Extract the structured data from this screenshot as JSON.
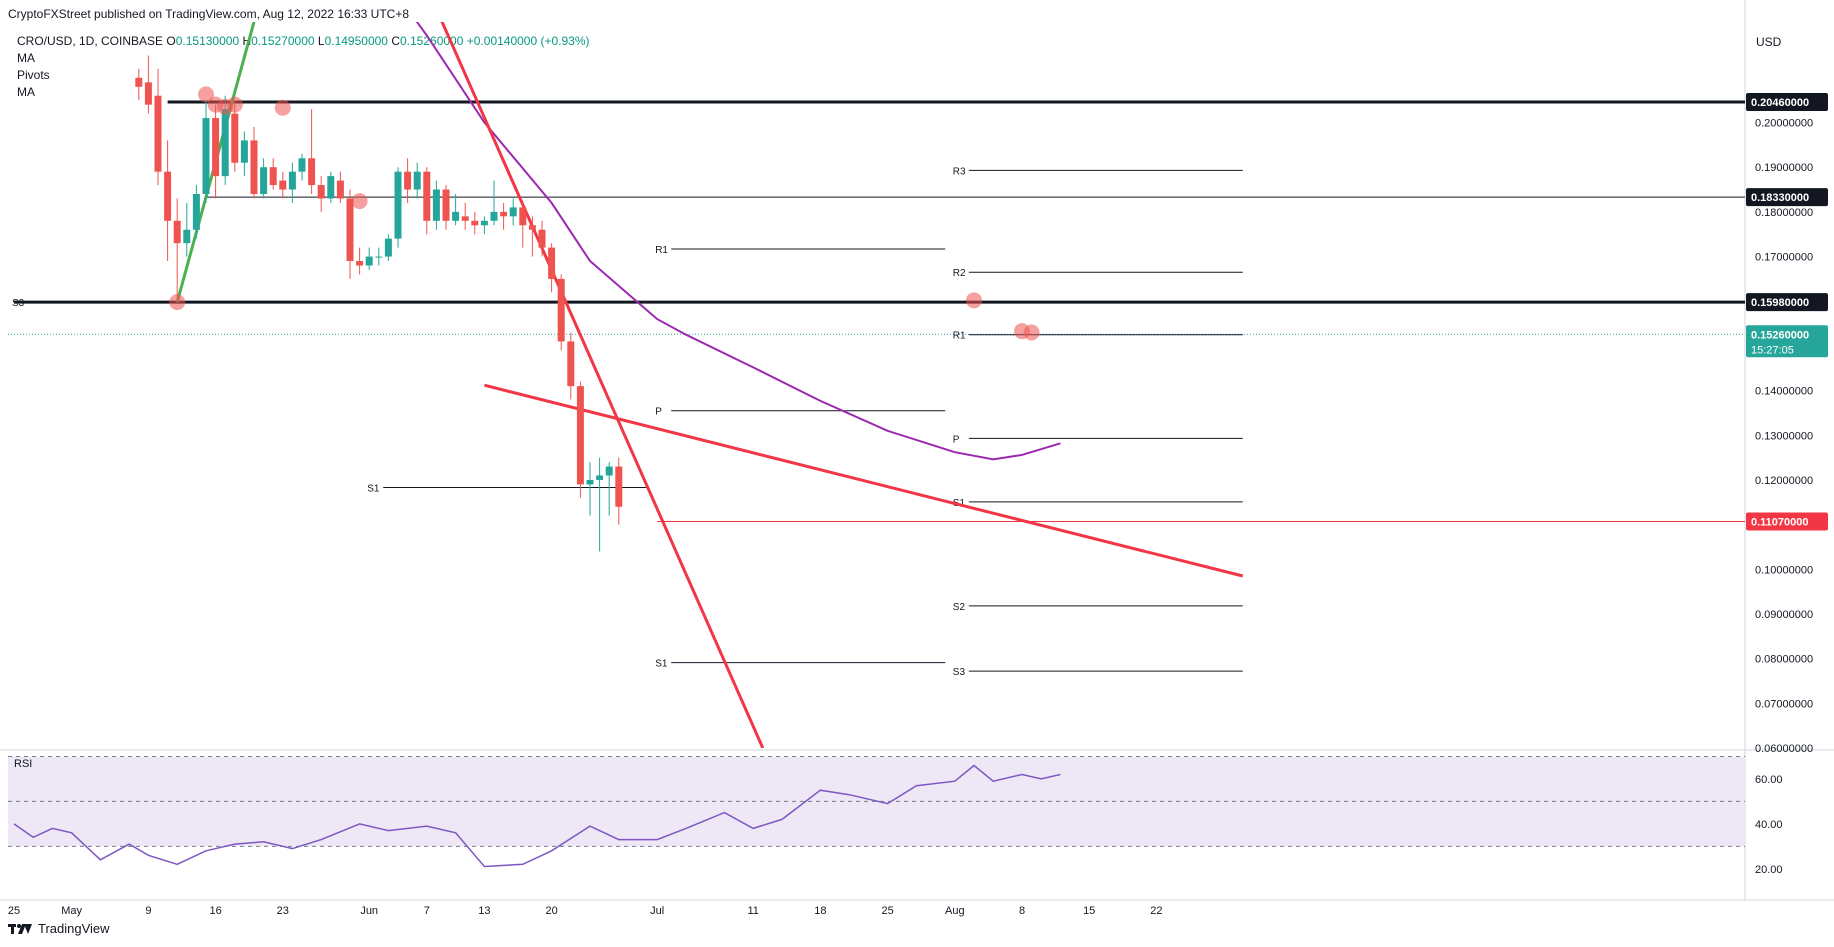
{
  "header": {
    "published": "CryptoFXStreet published on TradingView.com, Aug 12, 2022 16:33 UTC+8",
    "symbol": "CRO/USD, 1D, COINBASE",
    "ohlc": {
      "open_label": "O",
      "open": "0.15130000",
      "high_label": "H",
      "high": "0.15270000",
      "low_label": "L",
      "low": "0.14950000",
      "close_label": "C",
      "close": "0.15260000",
      "change": "+0.00140000 (+0.93%)"
    },
    "indicators": [
      "MA",
      "Pivots",
      "MA"
    ],
    "currency": "USD"
  },
  "footer": {
    "brand": "TradingView"
  },
  "colors": {
    "up": "#26a69a",
    "down": "#ef5350",
    "ma": "#9c27b0",
    "trend_red": "#f23645",
    "trend_green": "#4caf50",
    "rsi": "#7e57c2",
    "rsi_band": "#ede7f6"
  },
  "chart_data": [
    {
      "type": "candlestick",
      "title": "CRO/USD, 1D, COINBASE",
      "ylim": [
        0.06,
        0.2225
      ],
      "y_ticks": [
        "0.20000000",
        "0.19000000",
        "0.18000000",
        "0.17000000",
        "0.14000000",
        "0.13000000",
        "0.12000000",
        "0.10000000",
        "0.09000000",
        "0.08000000",
        "0.07000000",
        "0.06000000"
      ],
      "x_ticks": [
        "25",
        "May",
        "9",
        "16",
        "23",
        "Jun",
        "7",
        "13",
        "20",
        "Jul",
        "11",
        "18",
        "25",
        "Aug",
        "8",
        "15",
        "22"
      ],
      "x_tick_dates": [
        "2022-04-25",
        "2022-05-01",
        "2022-05-09",
        "2022-05-16",
        "2022-05-23",
        "2022-06-01",
        "2022-06-07",
        "2022-06-13",
        "2022-06-20",
        "2022-07-01",
        "2022-07-11",
        "2022-07-18",
        "2022-07-25",
        "2022-08-01",
        "2022-08-08",
        "2022-08-15",
        "2022-08-22"
      ],
      "price_labels": [
        {
          "value": 0.2046,
          "text": "0.20460000"
        },
        {
          "value": 0.1833,
          "text": "0.18330000"
        },
        {
          "value": 0.1598,
          "text": "0.15980000"
        },
        {
          "value": 0.1107,
          "text": "0.11070000"
        }
      ],
      "last_price": {
        "value": 0.1526,
        "text": "0.15260000",
        "countdown": "15:27:05"
      },
      "horizontal_levels": [
        {
          "value": 0.2046,
          "from": "2022-05-11",
          "color": "black",
          "bold": true
        },
        {
          "value": 0.1833,
          "from": "2022-05-15",
          "color": "black",
          "bold": false
        },
        {
          "value": 0.1598,
          "from": "2022-04-25",
          "color": "black",
          "bold": true
        },
        {
          "value": 0.1107,
          "from": "2022-07-01",
          "color": "red",
          "bold": false
        }
      ],
      "pivots": [
        {
          "label": "S3",
          "value": 0.1598,
          "from": "2022-04-25",
          "to": "2022-05-31"
        },
        {
          "label": "S1",
          "value": 0.1183,
          "from": "2022-06-01",
          "to": "2022-06-30"
        },
        {
          "label": "R1",
          "value": 0.1717,
          "from": "2022-07-01",
          "to": "2022-07-31"
        },
        {
          "label": "P",
          "value": 0.1355,
          "from": "2022-07-01",
          "to": "2022-07-31"
        },
        {
          "label": "S1",
          "value": 0.0791,
          "from": "2022-07-01",
          "to": "2022-07-31"
        },
        {
          "label": "R3",
          "value": 0.1893,
          "from": "2022-08-01",
          "to": "2022-08-31"
        },
        {
          "label": "R2",
          "value": 0.1665,
          "from": "2022-08-01",
          "to": "2022-08-31"
        },
        {
          "label": "R1",
          "value": 0.1525,
          "from": "2022-08-01",
          "to": "2022-08-31"
        },
        {
          "label": "P",
          "value": 0.1293,
          "from": "2022-08-01",
          "to": "2022-08-31"
        },
        {
          "label": "S1",
          "value": 0.1151,
          "from": "2022-08-01",
          "to": "2022-08-31"
        },
        {
          "label": "S2",
          "value": 0.0918,
          "from": "2022-08-01",
          "to": "2022-08-31"
        },
        {
          "label": "S3",
          "value": 0.0772,
          "from": "2022-08-01",
          "to": "2022-08-31"
        }
      ],
      "trendlines": [
        {
          "color": "red",
          "points": [
            [
              "2022-06-05",
              0.24
            ],
            [
              "2022-07-12",
              0.06
            ]
          ]
        },
        {
          "color": "red",
          "points": [
            [
              "2022-06-13",
              0.1412
            ],
            [
              "2022-08-31",
              0.0985
            ]
          ]
        },
        {
          "color": "green",
          "points": [
            [
              "2022-05-12",
              0.1598
            ],
            [
              "2022-05-20",
              0.2225
            ]
          ]
        }
      ],
      "touch_markers": [
        [
          "2022-05-12",
          0.1598
        ],
        [
          "2022-05-15",
          0.2063
        ],
        [
          "2022-05-16",
          0.204
        ],
        [
          "2022-05-17",
          0.2035
        ],
        [
          "2022-05-18",
          0.204
        ],
        [
          "2022-05-23",
          0.2033
        ],
        [
          "2022-05-31",
          0.1824
        ],
        [
          "2022-08-03",
          0.1602
        ],
        [
          "2022-08-08",
          0.1533
        ],
        [
          "2022-08-09",
          0.153
        ]
      ],
      "ma_series": {
        "name": "MA",
        "points": [
          [
            "2022-06-01",
            0.2372
          ],
          [
            "2022-06-07",
            0.2195
          ],
          [
            "2022-06-13",
            0.2
          ],
          [
            "2022-06-20",
            0.182
          ],
          [
            "2022-06-24",
            0.169
          ],
          [
            "2022-07-01",
            0.156
          ],
          [
            "2022-07-04",
            0.1525
          ],
          [
            "2022-07-11",
            0.1452
          ],
          [
            "2022-07-18",
            0.1377
          ],
          [
            "2022-07-25",
            0.131
          ],
          [
            "2022-08-01",
            0.1262
          ],
          [
            "2022-08-05",
            0.1246
          ],
          [
            "2022-08-08",
            0.1256
          ],
          [
            "2022-08-12",
            0.1282
          ]
        ]
      },
      "candles": [
        [
          "2022-05-08",
          0.21,
          0.212,
          0.205,
          0.208
        ],
        [
          "2022-05-09",
          0.209,
          0.215,
          0.202,
          0.204
        ],
        [
          "2022-05-10",
          0.206,
          0.212,
          0.186,
          0.189
        ],
        [
          "2022-05-11",
          0.189,
          0.196,
          0.169,
          0.178
        ],
        [
          "2022-05-12",
          0.178,
          0.183,
          0.16,
          0.173
        ],
        [
          "2022-05-13",
          0.173,
          0.182,
          0.17,
          0.176
        ],
        [
          "2022-05-14",
          0.176,
          0.186,
          0.174,
          0.184
        ],
        [
          "2022-05-15",
          0.184,
          0.205,
          0.182,
          0.201
        ],
        [
          "2022-05-16",
          0.201,
          0.204,
          0.183,
          0.188
        ],
        [
          "2022-05-17",
          0.188,
          0.206,
          0.186,
          0.203
        ],
        [
          "2022-05-18",
          0.202,
          0.205,
          0.189,
          0.191
        ],
        [
          "2022-05-19",
          0.191,
          0.198,
          0.188,
          0.196
        ],
        [
          "2022-05-20",
          0.196,
          0.199,
          0.183,
          0.184
        ],
        [
          "2022-05-21",
          0.184,
          0.192,
          0.183,
          0.19
        ],
        [
          "2022-05-22",
          0.19,
          0.192,
          0.185,
          0.186
        ],
        [
          "2022-05-23",
          0.187,
          0.189,
          0.183,
          0.185
        ],
        [
          "2022-05-24",
          0.185,
          0.191,
          0.182,
          0.189
        ],
        [
          "2022-05-25",
          0.189,
          0.193,
          0.187,
          0.192
        ],
        [
          "2022-05-26",
          0.192,
          0.203,
          0.184,
          0.186
        ],
        [
          "2022-05-27",
          0.186,
          0.188,
          0.18,
          0.183
        ],
        [
          "2022-05-28",
          0.183,
          0.189,
          0.182,
          0.188
        ],
        [
          "2022-05-29",
          0.187,
          0.189,
          0.182,
          0.183
        ],
        [
          "2022-05-30",
          0.183,
          0.185,
          0.165,
          0.169
        ],
        [
          "2022-05-31",
          0.169,
          0.172,
          0.166,
          0.168
        ],
        [
          "2022-06-01",
          0.168,
          0.172,
          0.167,
          0.17
        ],
        [
          "2022-06-02",
          0.17,
          0.172,
          0.168,
          0.17
        ],
        [
          "2022-06-03",
          0.17,
          0.175,
          0.169,
          0.174
        ],
        [
          "2022-06-04",
          0.174,
          0.19,
          0.172,
          0.189
        ],
        [
          "2022-06-05",
          0.189,
          0.192,
          0.182,
          0.185
        ],
        [
          "2022-06-06",
          0.185,
          0.191,
          0.183,
          0.189
        ],
        [
          "2022-06-07",
          0.189,
          0.19,
          0.175,
          0.178
        ],
        [
          "2022-06-08",
          0.178,
          0.187,
          0.176,
          0.185
        ],
        [
          "2022-06-09",
          0.185,
          0.186,
          0.176,
          0.178
        ],
        [
          "2022-06-10",
          0.178,
          0.184,
          0.177,
          0.18
        ],
        [
          "2022-06-11",
          0.179,
          0.182,
          0.176,
          0.178
        ],
        [
          "2022-06-12",
          0.178,
          0.18,
          0.175,
          0.177
        ],
        [
          "2022-06-13",
          0.177,
          0.179,
          0.175,
          0.178
        ],
        [
          "2022-06-14",
          0.178,
          0.187,
          0.177,
          0.18
        ],
        [
          "2022-06-15",
          0.18,
          0.182,
          0.176,
          0.179
        ],
        [
          "2022-06-16",
          0.179,
          0.183,
          0.177,
          0.181
        ],
        [
          "2022-06-17",
          0.181,
          0.182,
          0.172,
          0.177
        ],
        [
          "2022-06-18",
          0.177,
          0.179,
          0.17,
          0.176
        ],
        [
          "2022-06-19",
          0.176,
          0.178,
          0.17,
          0.172
        ],
        [
          "2022-06-20",
          0.172,
          0.173,
          0.162,
          0.165
        ],
        [
          "2022-06-21",
          0.165,
          0.166,
          0.149,
          0.151
        ],
        [
          "2022-06-22",
          0.151,
          0.153,
          0.138,
          0.141
        ],
        [
          "2022-06-23",
          0.141,
          0.142,
          0.116,
          0.119
        ],
        [
          "2022-06-24",
          0.119,
          0.124,
          0.112,
          0.12
        ],
        [
          "2022-06-25",
          0.12,
          0.125,
          0.104,
          0.121
        ],
        [
          "2022-06-26",
          0.121,
          0.124,
          0.112,
          0.123
        ],
        [
          "2022-06-27",
          0.123,
          0.125,
          0.11,
          0.114
        ]
      ]
    },
    {
      "type": "line",
      "title": "RSI",
      "ylim": [
        15,
        72
      ],
      "y_ticks": [
        "60.00",
        "40.00",
        "20.00"
      ],
      "band": [
        30,
        70
      ],
      "mid": 50,
      "series": [
        {
          "name": "RSI",
          "points": [
            [
              "2022-04-25",
              40
            ],
            [
              "2022-04-27",
              34
            ],
            [
              "2022-04-29",
              38
            ],
            [
              "2022-05-01",
              36
            ],
            [
              "2022-05-04",
              24
            ],
            [
              "2022-05-07",
              31
            ],
            [
              "2022-05-09",
              26
            ],
            [
              "2022-05-12",
              22
            ],
            [
              "2022-05-15",
              28
            ],
            [
              "2022-05-18",
              31
            ],
            [
              "2022-05-21",
              32
            ],
            [
              "2022-05-24",
              29
            ],
            [
              "2022-05-27",
              33
            ],
            [
              "2022-05-31",
              40
            ],
            [
              "2022-06-03",
              37
            ],
            [
              "2022-06-07",
              39
            ],
            [
              "2022-06-10",
              36
            ],
            [
              "2022-06-13",
              21
            ],
            [
              "2022-06-17",
              22
            ],
            [
              "2022-06-20",
              28
            ],
            [
              "2022-06-24",
              39
            ],
            [
              "2022-06-27",
              33
            ],
            [
              "2022-07-01",
              33
            ],
            [
              "2022-07-04",
              38
            ],
            [
              "2022-07-08",
              45
            ],
            [
              "2022-07-11",
              38
            ],
            [
              "2022-07-14",
              42
            ],
            [
              "2022-07-18",
              55
            ],
            [
              "2022-07-21",
              53
            ],
            [
              "2022-07-25",
              49
            ],
            [
              "2022-07-28",
              57
            ],
            [
              "2022-08-01",
              59
            ],
            [
              "2022-08-03",
              66
            ],
            [
              "2022-08-05",
              59
            ],
            [
              "2022-08-08",
              62
            ],
            [
              "2022-08-10",
              60
            ],
            [
              "2022-08-12",
              62
            ]
          ]
        }
      ]
    }
  ]
}
